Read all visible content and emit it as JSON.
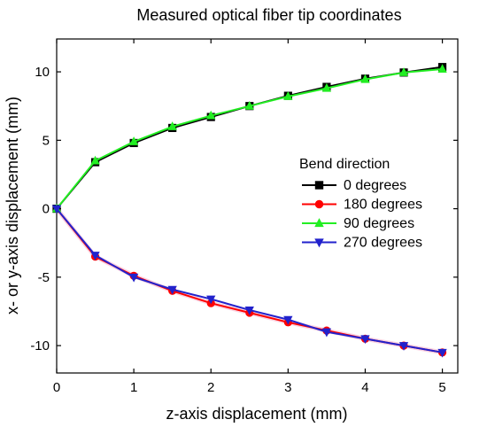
{
  "colors": {
    "black": "#000000",
    "red": "#ff0000",
    "green": "#22ee22",
    "blue": "#2222cc",
    "background": "#ffffff",
    "red_shadow": "#f6b0cc"
  },
  "chart_data": {
    "type": "line",
    "title": "Measured optical fiber tip coordinates",
    "xlabel": "z-axis displacement (mm)",
    "ylabel": "x- or y-axis displacement (mm)",
    "xlim": [
      0,
      5.2
    ],
    "ylim": [
      -12,
      12.4
    ],
    "x_ticks": [
      0,
      1,
      2,
      3,
      4,
      5
    ],
    "y_ticks": [
      -10,
      -5,
      0,
      5,
      10
    ],
    "x_tick_labels": [
      "0",
      "1",
      "2",
      "3",
      "4",
      "5"
    ],
    "y_tick_labels": [
      "-10",
      "-5",
      "0",
      "5",
      "10"
    ],
    "grid": false,
    "legend": {
      "title": "Bend direction",
      "placement": "right-middle"
    },
    "x": [
      0,
      0.5,
      1,
      1.5,
      2,
      2.5,
      3,
      3.5,
      4,
      4.5,
      5
    ],
    "series": [
      {
        "name": "0 degrees",
        "color": "#000000",
        "marker": "square",
        "values": [
          0,
          3.4,
          4.8,
          5.9,
          6.7,
          7.5,
          8.25,
          8.9,
          9.5,
          9.95,
          10.35
        ]
      },
      {
        "name": "180 degrees",
        "color": "#ff0000",
        "marker": "circle",
        "values": [
          0,
          -3.5,
          -4.9,
          -6.0,
          -6.9,
          -7.6,
          -8.3,
          -8.9,
          -9.5,
          -10.0,
          -10.5
        ]
      },
      {
        "name": "90 degrees",
        "color": "#22ee22",
        "marker": "triangle-up",
        "values": [
          0,
          3.5,
          4.9,
          6.0,
          6.8,
          7.5,
          8.2,
          8.8,
          9.45,
          9.95,
          10.2
        ]
      },
      {
        "name": "270 degrees",
        "color": "#2222cc",
        "marker": "triangle-down",
        "values": [
          0,
          -3.4,
          -5.0,
          -5.9,
          -6.6,
          -7.4,
          -8.1,
          -9.0,
          -9.5,
          -10.0,
          -10.5
        ]
      }
    ]
  }
}
